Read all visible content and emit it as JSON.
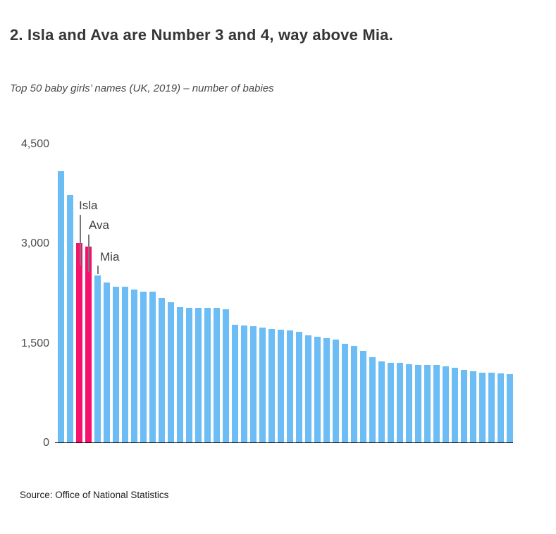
{
  "header": {
    "title": "2. Isla and Ava are Number 3 and 4, way above Mia.",
    "subtitle": "Top 50 baby girls’ names (UK, 2019) – number of babies"
  },
  "footer": {
    "source": "Source: Office of National Statistics"
  },
  "colors": {
    "bar": "#6CBDF5",
    "bar_highlight": "#F5116C",
    "baseline": "#000000",
    "annotation_line": "#787878",
    "annotation_text": "#3f3f3f",
    "title_text": "#363636",
    "subtitle_text": "#4a4a4a",
    "tick_text": "#4c4c4c",
    "source_text": "#1c1c1c"
  },
  "chart_data": {
    "type": "bar",
    "title": "Top 50 baby girls’ names (UK, 2019) – number of babies",
    "xlabel": "",
    "ylabel": "number of babies",
    "ylim": [
      0,
      4500
    ],
    "grid": false,
    "legend": false,
    "bar_count": 50,
    "yticks": [
      {
        "value": 4500,
        "label": "4,500"
      },
      {
        "value": 3000,
        "label": "3,000"
      },
      {
        "value": 1500,
        "label": "1,500"
      },
      {
        "value": 0,
        "label": "0"
      }
    ],
    "values": [
      4080,
      3720,
      3000,
      2950,
      2510,
      2410,
      2340,
      2340,
      2300,
      2270,
      2270,
      2175,
      2110,
      2040,
      2030,
      2030,
      2020,
      2020,
      2000,
      1770,
      1760,
      1750,
      1730,
      1710,
      1700,
      1690,
      1660,
      1610,
      1590,
      1570,
      1550,
      1480,
      1450,
      1380,
      1280,
      1220,
      1200,
      1200,
      1180,
      1170,
      1170,
      1165,
      1150,
      1120,
      1090,
      1070,
      1050,
      1050,
      1040,
      1030
    ],
    "annotations": [
      {
        "label": "Isla",
        "bar_index": 2,
        "rank": 3,
        "highlighted": true
      },
      {
        "label": "Ava",
        "bar_index": 3,
        "rank": 4,
        "highlighted": true
      },
      {
        "label": "Mia",
        "bar_index": 4,
        "rank": 5,
        "highlighted": false
      }
    ]
  }
}
